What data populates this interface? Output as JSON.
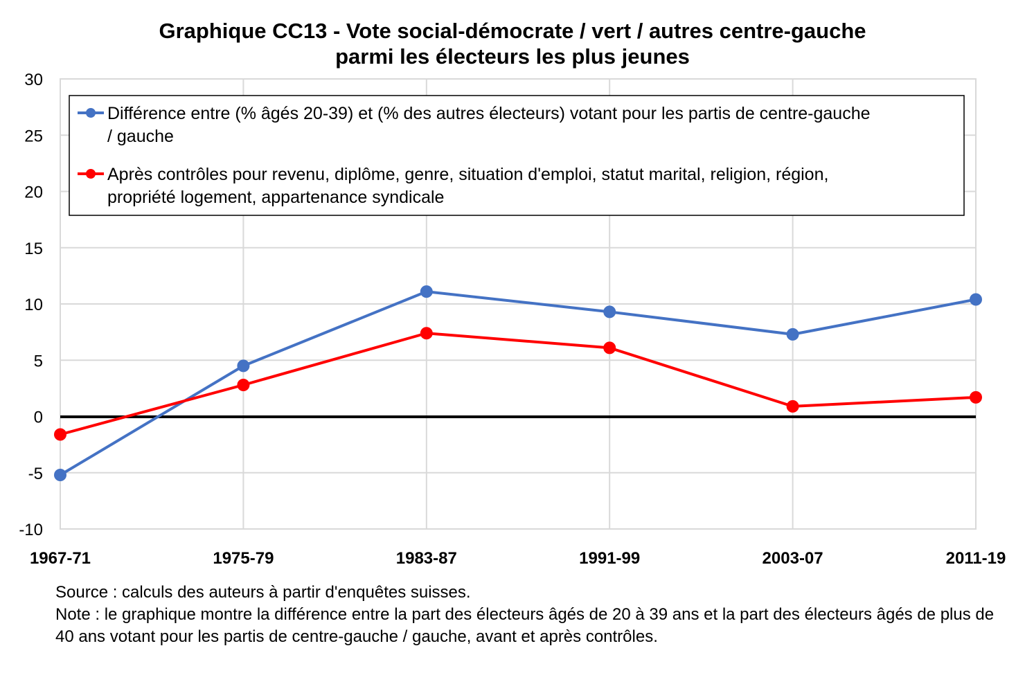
{
  "colors": {
    "series1": "#4472C4",
    "series2": "#FF0000",
    "zero_line": "#000000",
    "grid": "#D9D9D9"
  },
  "chart_data": {
    "type": "line",
    "title": [
      "Graphique CC13 - Vote social-démocrate / vert / autres centre-gauche",
      "parmi les électeurs les plus jeunes"
    ],
    "categories": [
      "1967-71",
      "1975-79",
      "1983-87",
      "1991-99",
      "2003-07",
      "2011-19"
    ],
    "ylim": [
      -10,
      30
    ],
    "yticks": [
      "-10",
      "-5",
      "0",
      "5",
      "10",
      "15",
      "20",
      "25",
      "30"
    ],
    "grid": "vertical and horizontal",
    "legend_position": "top",
    "series": [
      {
        "name_lines": [
          "Différence entre (% âgés 20-39) et (% des autres électeurs) votant pour les partis de centre-gauche",
          "/ gauche"
        ],
        "values": [
          -5.2,
          4.5,
          11.1,
          9.3,
          7.3,
          10.4
        ]
      },
      {
        "name_lines": [
          "Après contrôles pour revenu, diplôme, genre, situation d'emploi, statut marital, religion, région,",
          "propriété logement, appartenance syndicale"
        ],
        "values": [
          -1.6,
          2.8,
          7.4,
          6.1,
          0.9,
          1.7
        ]
      }
    ]
  },
  "footer": {
    "source": "Source : calculs des auteurs à partir d'enquêtes suisses.",
    "note": "Note : le graphique montre la différence entre la part des électeurs âgés de 20 à 39 ans et la part des électeurs âgés de plus de 40 ans votant pour les partis de centre-gauche / gauche, avant et après contrôles."
  }
}
